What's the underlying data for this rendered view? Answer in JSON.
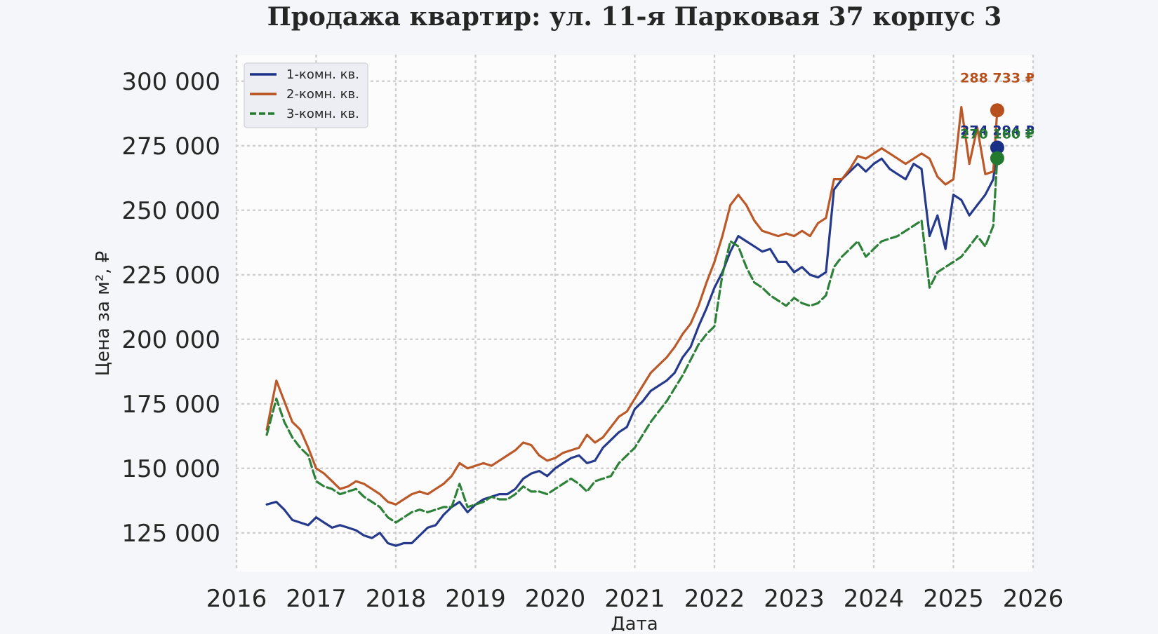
{
  "chart_data": {
    "type": "line",
    "title": "Продажа квартир: ул. 11-я Парковая 37 корпус 3",
    "xlabel": "Дата",
    "ylabel": "Цена за м², ₽",
    "xlim": [
      2016.0,
      2026.0
    ],
    "ylim": [
      110000,
      310000
    ],
    "x_ticks": [
      "2016",
      "2017",
      "2018",
      "2019",
      "2020",
      "2021",
      "2022",
      "2023",
      "2024",
      "2025",
      "2026"
    ],
    "y_ticks": [
      {
        "value": 125000,
        "label": "125 000"
      },
      {
        "value": 150000,
        "label": "150 000"
      },
      {
        "value": 175000,
        "label": "175 000"
      },
      {
        "value": 200000,
        "label": "200 000"
      },
      {
        "value": 225000,
        "label": "225 000"
      },
      {
        "value": 250000,
        "label": "250 000"
      },
      {
        "value": 275000,
        "label": "275 000"
      },
      {
        "value": 300000,
        "label": "300 000"
      }
    ],
    "grid": true,
    "legend_position": "top-left",
    "series": [
      {
        "name": "1-комн. кв.",
        "color": "#1a2f86",
        "dash": "solid",
        "last_value": 274294,
        "last_label": "274 294 ₽",
        "x": [
          2016.38,
          2016.5,
          2016.6,
          2016.7,
          2016.8,
          2016.9,
          2017.0,
          2017.1,
          2017.2,
          2017.3,
          2017.4,
          2017.5,
          2017.6,
          2017.7,
          2017.8,
          2017.9,
          2018.0,
          2018.1,
          2018.2,
          2018.3,
          2018.4,
          2018.5,
          2018.6,
          2018.7,
          2018.8,
          2018.9,
          2019.0,
          2019.1,
          2019.2,
          2019.3,
          2019.4,
          2019.5,
          2019.6,
          2019.7,
          2019.8,
          2019.9,
          2020.0,
          2020.1,
          2020.2,
          2020.3,
          2020.4,
          2020.5,
          2020.6,
          2020.7,
          2020.8,
          2020.9,
          2021.0,
          2021.1,
          2021.2,
          2021.3,
          2021.4,
          2021.5,
          2021.6,
          2021.7,
          2021.8,
          2021.9,
          2022.0,
          2022.1,
          2022.2,
          2022.3,
          2022.4,
          2022.5,
          2022.6,
          2022.7,
          2022.8,
          2022.9,
          2023.0,
          2023.1,
          2023.2,
          2023.3,
          2023.4,
          2023.5,
          2023.6,
          2023.7,
          2023.8,
          2023.9,
          2024.0,
          2024.1,
          2024.2,
          2024.3,
          2024.4,
          2024.5,
          2024.6,
          2024.7,
          2024.8,
          2024.9,
          2025.0,
          2025.1,
          2025.2,
          2025.3,
          2025.4,
          2025.5,
          2025.55
        ],
        "values": [
          136000,
          137000,
          134000,
          130000,
          129000,
          128000,
          131000,
          129000,
          127000,
          128000,
          127000,
          126000,
          124000,
          123000,
          125000,
          121000,
          120000,
          121000,
          121000,
          124000,
          127000,
          128000,
          132000,
          135000,
          137000,
          133000,
          136000,
          138000,
          139000,
          140000,
          140000,
          142000,
          146000,
          148000,
          149000,
          147000,
          150000,
          152000,
          154000,
          155000,
          152000,
          153000,
          158000,
          161000,
          164000,
          166000,
          173000,
          176000,
          180000,
          182000,
          184000,
          187000,
          193000,
          197000,
          205000,
          212000,
          220000,
          226000,
          234000,
          240000,
          238000,
          236000,
          234000,
          235000,
          230000,
          230000,
          226000,
          228000,
          225000,
          224000,
          226000,
          258000,
          262000,
          265000,
          268000,
          265000,
          268000,
          270000,
          266000,
          264000,
          262000,
          268000,
          266000,
          240000,
          248000,
          235000,
          256000,
          254000,
          248000,
          252000,
          256000,
          262000,
          274294
        ]
      },
      {
        "name": "2-комн. кв.",
        "color": "#b8501d",
        "dash": "solid",
        "last_value": 288733,
        "last_label": "288 733 ₽",
        "x": [
          2016.38,
          2016.5,
          2016.6,
          2016.7,
          2016.8,
          2016.9,
          2017.0,
          2017.1,
          2017.2,
          2017.3,
          2017.4,
          2017.5,
          2017.6,
          2017.7,
          2017.8,
          2017.9,
          2018.0,
          2018.1,
          2018.2,
          2018.3,
          2018.4,
          2018.5,
          2018.6,
          2018.7,
          2018.8,
          2018.9,
          2019.0,
          2019.1,
          2019.2,
          2019.3,
          2019.4,
          2019.5,
          2019.6,
          2019.7,
          2019.8,
          2019.9,
          2020.0,
          2020.1,
          2020.2,
          2020.3,
          2020.4,
          2020.5,
          2020.6,
          2020.7,
          2020.8,
          2020.9,
          2021.0,
          2021.1,
          2021.2,
          2021.3,
          2021.4,
          2021.5,
          2021.6,
          2021.7,
          2021.8,
          2021.9,
          2022.0,
          2022.1,
          2022.2,
          2022.3,
          2022.4,
          2022.5,
          2022.6,
          2022.7,
          2022.8,
          2022.9,
          2023.0,
          2023.1,
          2023.2,
          2023.3,
          2023.4,
          2023.5,
          2023.6,
          2023.7,
          2023.8,
          2023.9,
          2024.0,
          2024.1,
          2024.2,
          2024.3,
          2024.4,
          2024.5,
          2024.6,
          2024.7,
          2024.8,
          2024.9,
          2025.0,
          2025.1,
          2025.2,
          2025.3,
          2025.4,
          2025.5,
          2025.55
        ],
        "values": [
          165000,
          184000,
          176000,
          168000,
          165000,
          158000,
          150000,
          148000,
          145000,
          142000,
          143000,
          145000,
          144000,
          142000,
          140000,
          137000,
          136000,
          138000,
          140000,
          141000,
          140000,
          142000,
          144000,
          147000,
          152000,
          150000,
          151000,
          152000,
          151000,
          153000,
          155000,
          157000,
          160000,
          159000,
          155000,
          153000,
          154000,
          156000,
          157000,
          158000,
          163000,
          160000,
          162000,
          166000,
          170000,
          172000,
          177000,
          182000,
          187000,
          190000,
          193000,
          197000,
          202000,
          206000,
          213000,
          222000,
          230000,
          240000,
          252000,
          256000,
          252000,
          246000,
          242000,
          241000,
          240000,
          241000,
          240000,
          242000,
          240000,
          245000,
          247000,
          262000,
          262000,
          266000,
          271000,
          270000,
          272000,
          274000,
          272000,
          270000,
          268000,
          270000,
          272000,
          270000,
          263000,
          260000,
          262000,
          290000,
          268000,
          282000,
          264000,
          265000,
          288733
        ]
      },
      {
        "name": "3-комн. кв.",
        "color": "#237a2e",
        "dash": "dashed",
        "last_value": 270160,
        "last_label": "270 160 ₽",
        "x": [
          2016.38,
          2016.5,
          2016.6,
          2016.7,
          2016.8,
          2016.9,
          2017.0,
          2017.1,
          2017.2,
          2017.3,
          2017.4,
          2017.5,
          2017.6,
          2017.7,
          2017.8,
          2017.9,
          2018.0,
          2018.1,
          2018.2,
          2018.3,
          2018.4,
          2018.5,
          2018.6,
          2018.7,
          2018.8,
          2018.9,
          2019.0,
          2019.1,
          2019.2,
          2019.3,
          2019.4,
          2019.5,
          2019.6,
          2019.7,
          2019.8,
          2019.9,
          2020.0,
          2020.1,
          2020.2,
          2020.3,
          2020.4,
          2020.5,
          2020.6,
          2020.7,
          2020.8,
          2020.9,
          2021.0,
          2021.1,
          2021.2,
          2021.3,
          2021.4,
          2021.5,
          2021.6,
          2021.7,
          2021.8,
          2021.9,
          2022.0,
          2022.1,
          2022.2,
          2022.3,
          2022.4,
          2022.5,
          2022.6,
          2022.7,
          2022.8,
          2022.9,
          2023.0,
          2023.1,
          2023.2,
          2023.3,
          2023.4,
          2023.5,
          2023.6,
          2023.7,
          2023.8,
          2023.9,
          2024.0,
          2024.1,
          2024.2,
          2024.3,
          2024.4,
          2024.5,
          2024.6,
          2024.7,
          2024.8,
          2024.9,
          2025.0,
          2025.1,
          2025.2,
          2025.3,
          2025.4,
          2025.5,
          2025.55
        ],
        "values": [
          163000,
          177000,
          168000,
          162000,
          158000,
          155000,
          145000,
          143000,
          142000,
          140000,
          141000,
          142000,
          139000,
          137000,
          135000,
          131000,
          129000,
          131000,
          133000,
          134000,
          133000,
          134000,
          135000,
          135000,
          144000,
          135000,
          136000,
          137000,
          139000,
          138000,
          138000,
          140000,
          143000,
          141000,
          141000,
          140000,
          142000,
          144000,
          146000,
          144000,
          141000,
          145000,
          146000,
          147000,
          152000,
          155000,
          158000,
          163000,
          168000,
          172000,
          176000,
          181000,
          186000,
          192000,
          198000,
          202000,
          205000,
          225000,
          238000,
          236000,
          228000,
          222000,
          220000,
          217000,
          215000,
          213000,
          216000,
          214000,
          213000,
          214000,
          217000,
          228000,
          232000,
          235000,
          238000,
          232000,
          235000,
          238000,
          239000,
          240000,
          242000,
          244000,
          246000,
          220000,
          226000,
          228000,
          230000,
          232000,
          236000,
          240000,
          236000,
          244000,
          270160
        ]
      }
    ]
  }
}
